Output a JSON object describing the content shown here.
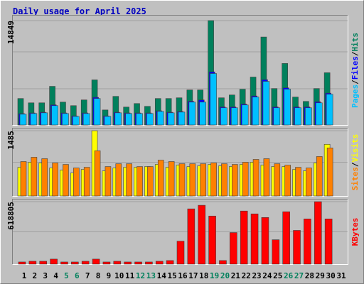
{
  "chart_data": [
    {
      "type": "bar",
      "title": "Daily usage for April 2025",
      "title_color": "#0000c0",
      "ylim": [
        0,
        15650
      ],
      "yticks": [
        14849
      ],
      "legend_separator": "/",
      "series": [
        {
          "name": "Hits",
          "color": "#00805c",
          "values": [
            3840,
            3230,
            3230,
            5560,
            3330,
            2830,
            3640,
            6470,
            2220,
            4140,
            2630,
            3130,
            2730,
            3840,
            3840,
            3940,
            5050,
            5050,
            14849,
            3940,
            4340,
            5150,
            6870,
            12530,
            5250,
            8790,
            4040,
            3430,
            5250,
            7480,
            null
          ]
        },
        {
          "name": "Files",
          "color": "#0000ff",
          "values": [
            1700,
            1800,
            1900,
            2950,
            1800,
            1380,
            1800,
            4000,
            1380,
            1900,
            1800,
            1800,
            1800,
            2100,
            1900,
            2000,
            3450,
            3640,
            7600,
            2650,
            2650,
            3050,
            4200,
            6500,
            2650,
            5350,
            2650,
            2650,
            3380,
            4600,
            null
          ]
        },
        {
          "name": "Pages",
          "color": "#00c0ff",
          "values": [
            1620,
            1720,
            1820,
            2830,
            1720,
            1310,
            1720,
            3840,
            1310,
            1820,
            1720,
            1720,
            1720,
            2020,
            1820,
            1920,
            3330,
            3330,
            7370,
            2530,
            2530,
            2930,
            4040,
            6260,
            2530,
            5150,
            2530,
            2530,
            3230,
            4440,
            null
          ]
        }
      ]
    },
    {
      "type": "bar",
      "ylim": [
        0,
        1550
      ],
      "yticks": [
        1485
      ],
      "legend_separator": "/",
      "series": [
        {
          "name": "Visits",
          "color": "#ffff00",
          "values": [
            662,
            775,
            759,
            646,
            597,
            533,
            613,
            1485,
            581,
            646,
            662,
            662,
            678,
            726,
            662,
            710,
            678,
            694,
            726,
            694,
            678,
            726,
            775,
            710,
            678,
            678,
            613,
            581,
            759,
            1178,
            null
          ]
        },
        {
          "name": "Sites",
          "color": "#ff8000",
          "values": [
            791,
            888,
            855,
            759,
            726,
            646,
            662,
            1033,
            678,
            742,
            742,
            678,
            678,
            823,
            791,
            742,
            742,
            742,
            759,
            742,
            726,
            775,
            839,
            855,
            742,
            710,
            662,
            646,
            904,
            1098,
            null
          ]
        }
      ]
    },
    {
      "type": "bar",
      "ylim": [
        0,
        647000
      ],
      "yticks": [
        618805
      ],
      "series": [
        {
          "name": "KBytes",
          "color": "#ff0000",
          "values": [
            28130,
            35160,
            35160,
            56260,
            28130,
            28130,
            35160,
            56260,
            28130,
            35160,
            28130,
            28130,
            28130,
            35160,
            42190,
            232060,
            548500,
            583660,
            478180,
            42190,
            316440,
            527400,
            499270,
            464110,
            246120,
            520370,
            337540,
            450050,
            618805,
            450050,
            null
          ]
        }
      ],
      "categories": [
        "1",
        "2",
        "3",
        "4",
        "5",
        "6",
        "7",
        "8",
        "9",
        "10",
        "11",
        "12",
        "13",
        "14",
        "15",
        "16",
        "17",
        "18",
        "19",
        "20",
        "21",
        "22",
        "23",
        "24",
        "25",
        "26",
        "27",
        "28",
        "29",
        "30",
        "31"
      ],
      "label_colors": [
        "#000000",
        "#000000",
        "#000000",
        "#000000",
        "#00805c",
        "#00805c",
        "#000000",
        "#000000",
        "#000000",
        "#000000",
        "#000000",
        "#00805c",
        "#00805c",
        "#000000",
        "#000000",
        "#000000",
        "#000000",
        "#000000",
        "#00805c",
        "#00805c",
        "#000000",
        "#000000",
        "#000000",
        "#000000",
        "#000000",
        "#00805c",
        "#00805c",
        "#000000",
        "#000000",
        "#000000",
        "#000000"
      ]
    }
  ]
}
